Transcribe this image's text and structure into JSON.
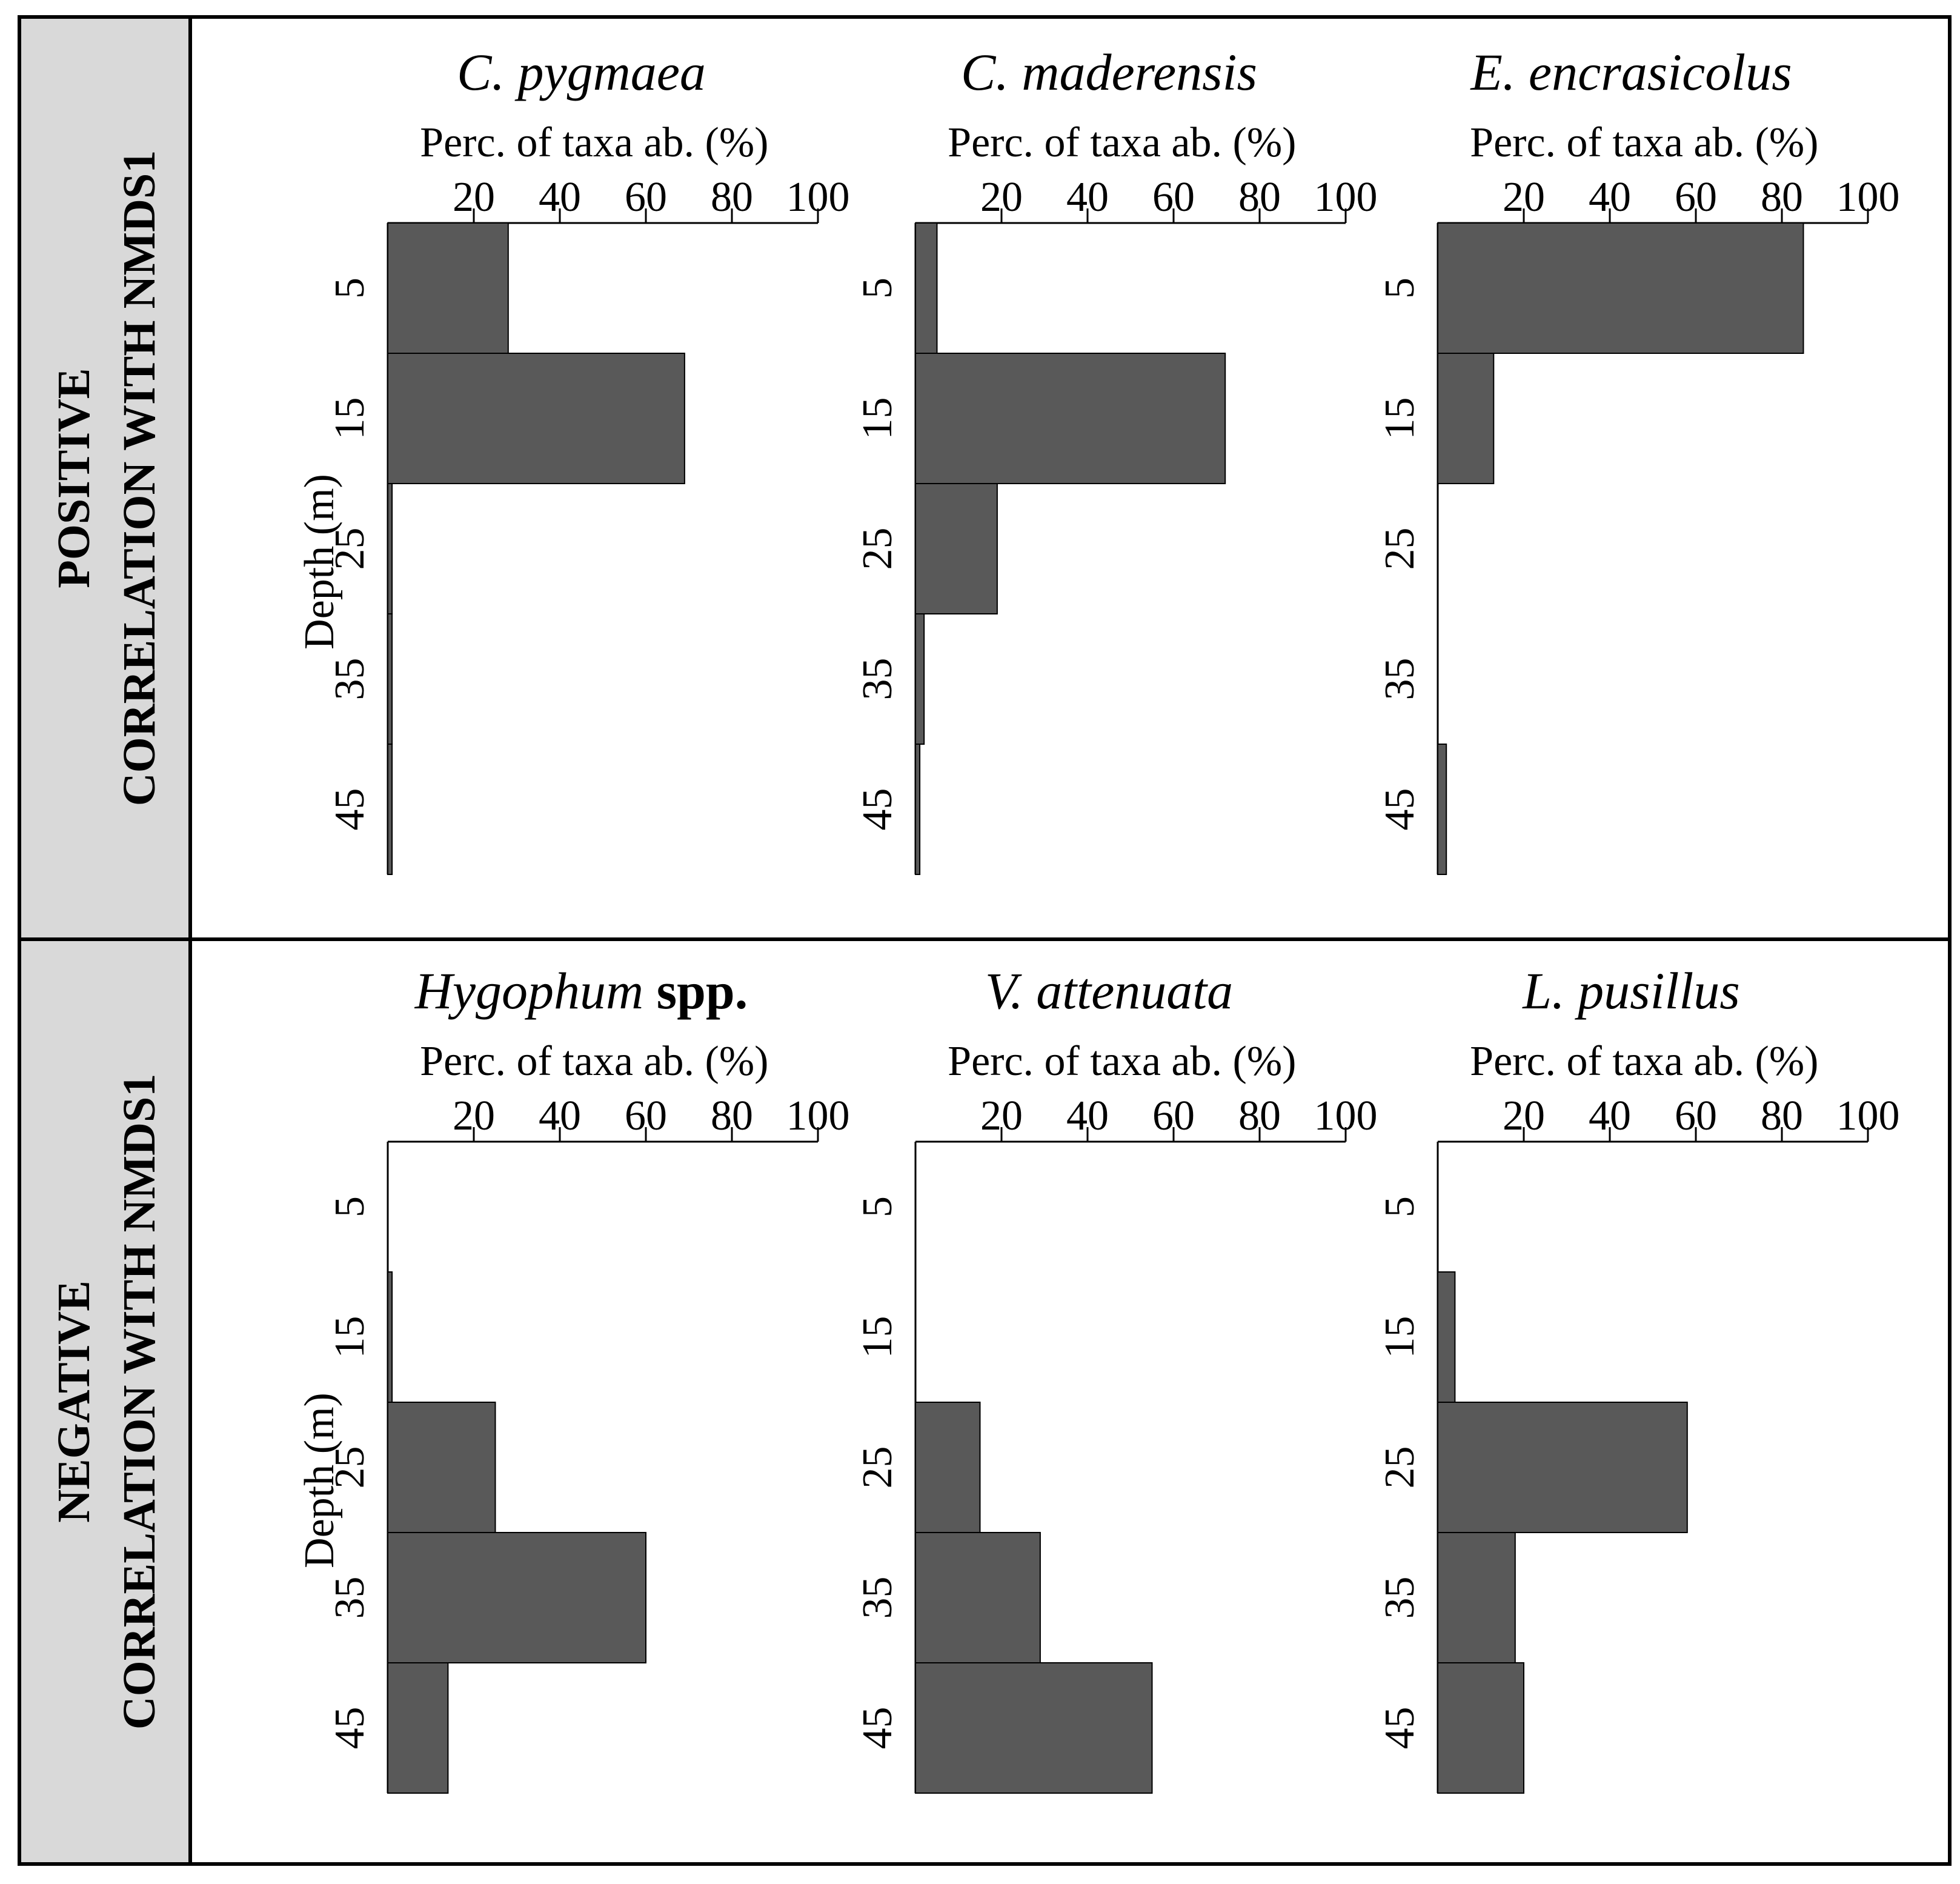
{
  "rows": [
    {
      "label_line1": "POSITIVE",
      "label_line2": "CORRELATION WITH NMDS1",
      "depth_label": "Depth (m)",
      "panels": [
        {
          "species": "C. pygmaea",
          "suffix": "",
          "values": [
            28,
            69,
            1,
            1,
            1
          ]
        },
        {
          "species": "C. maderensis",
          "suffix": "",
          "values": [
            5,
            72,
            19,
            2,
            1
          ]
        },
        {
          "species": "E. encrasicolus",
          "suffix": "",
          "values": [
            85,
            13,
            0,
            0,
            2
          ]
        }
      ]
    },
    {
      "label_line1": "NEGATIVE",
      "label_line2": "CORRELATION WITH NMDS1",
      "depth_label": "Depth (m)",
      "panels": [
        {
          "species": "Hygophum",
          "suffix": " spp.",
          "values": [
            0,
            1,
            25,
            60,
            14
          ]
        },
        {
          "species": "V. attenuata",
          "suffix": "",
          "values": [
            0,
            0,
            15,
            29,
            55
          ]
        },
        {
          "species": "L.  pusillus",
          "suffix": "",
          "values": [
            0,
            4,
            58,
            18,
            20
          ]
        }
      ]
    }
  ],
  "chart_data": {
    "type": "bar",
    "orientation": "horizontal",
    "title": "",
    "xlabel": "Perc. of taxa ab. (%)",
    "ylabel": "Depth (m)",
    "xlim": [
      0,
      100
    ],
    "xticks": [
      20,
      40,
      60,
      80,
      100
    ],
    "ylim": [
      0,
      50
    ],
    "yticks": [
      5,
      15,
      25,
      35,
      45
    ],
    "categories": [
      "5",
      "15",
      "25",
      "35",
      "45"
    ],
    "grid": false,
    "bar_color": "#595959"
  }
}
